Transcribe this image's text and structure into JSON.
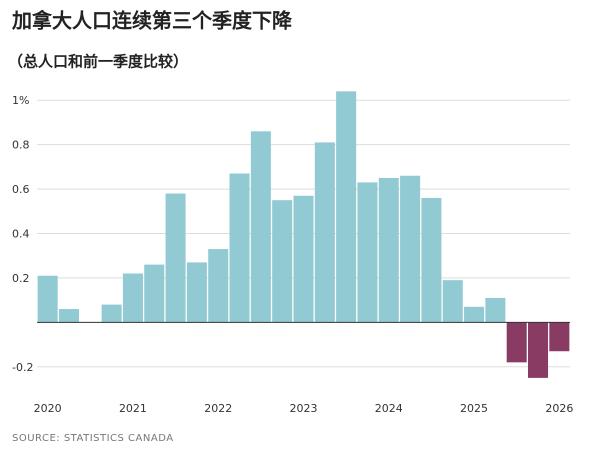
{
  "chart_data": {
    "type": "bar",
    "title": "加拿大人口连续第三个季度下降",
    "subtitle": "（总人口和前一季度比较）",
    "source": "SOURCE: STATISTICS CANADA",
    "categories": [
      "2020",
      null,
      null,
      null,
      "2021",
      null,
      null,
      null,
      "2022",
      null,
      null,
      null,
      "2023",
      null,
      null,
      null,
      "2024",
      null,
      null,
      null,
      "2025",
      null,
      null,
      null,
      "2026"
    ],
    "values": [
      0.21,
      0.06,
      0,
      0.08,
      0.22,
      0.26,
      0.58,
      0.27,
      0.33,
      0.67,
      0.86,
      0.55,
      0.57,
      0.81,
      1.04,
      0.63,
      0.65,
      0.66,
      0.56,
      0.19,
      0.07,
      0.11,
      -0.18,
      -0.25,
      -0.13
    ],
    "color": "#92cad4",
    "negative_color": "#8a3b63",
    "ylim": [
      -0.3,
      1.1
    ],
    "yticks": [
      -0.2,
      0.2,
      0.4,
      0.6,
      0.8,
      {
        "value": 1,
        "label": "1%"
      }
    ],
    "grid": true
  }
}
